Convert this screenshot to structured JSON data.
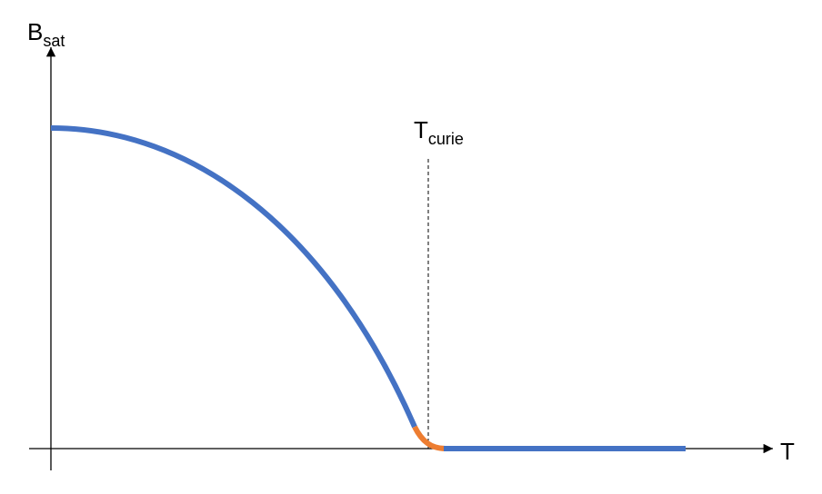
{
  "axes": {
    "y_label": {
      "main": "B",
      "sub": "sat"
    },
    "x_label": "T"
  },
  "annotation": {
    "main": "T",
    "sub": "curie"
  }
}
